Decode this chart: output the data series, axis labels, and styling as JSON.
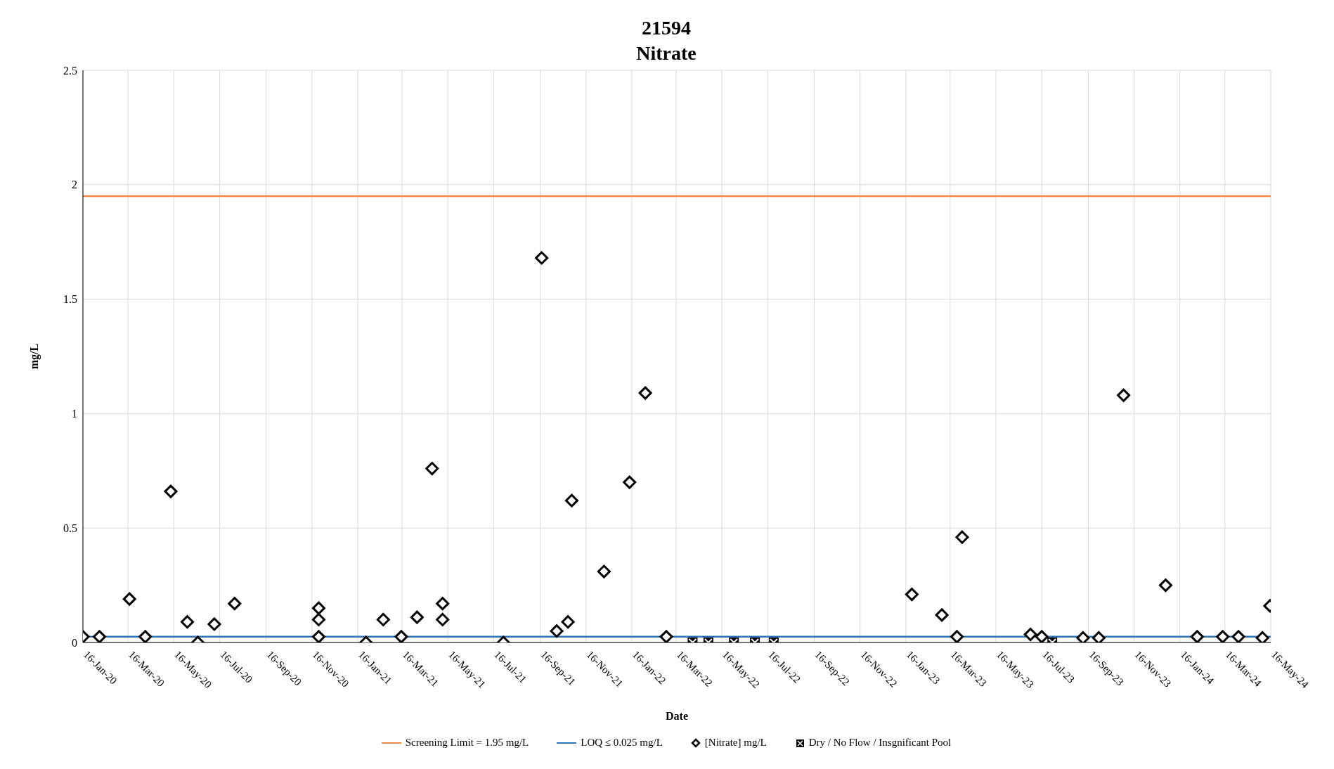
{
  "chart_data": {
    "type": "scatter",
    "title": "21594",
    "subtitle": "Nitrate",
    "xlabel": "Date",
    "ylabel": "mg/L",
    "xlim": [
      "2020-01-16",
      "2024-05-16"
    ],
    "xticks": [
      {
        "value": "2020-01-16",
        "label": "16-Jan-20"
      },
      {
        "value": "2020-03-16",
        "label": "16-Mar-20"
      },
      {
        "value": "2020-05-16",
        "label": "16-May-20"
      },
      {
        "value": "2020-07-16",
        "label": "16-Jul-20"
      },
      {
        "value": "2020-09-16",
        "label": "16-Sep-20"
      },
      {
        "value": "2020-11-16",
        "label": "16-Nov-20"
      },
      {
        "value": "2021-01-16",
        "label": "16-Jan-21"
      },
      {
        "value": "2021-03-16",
        "label": "16-Mar-21"
      },
      {
        "value": "2021-05-16",
        "label": "16-May-21"
      },
      {
        "value": "2021-07-16",
        "label": "16-Jul-21"
      },
      {
        "value": "2021-09-16",
        "label": "16-Sep-21"
      },
      {
        "value": "2021-11-16",
        "label": "16-Nov-21"
      },
      {
        "value": "2022-01-16",
        "label": "16-Jan-22"
      },
      {
        "value": "2022-03-16",
        "label": "16-Mar-22"
      },
      {
        "value": "2022-05-16",
        "label": "16-May-22"
      },
      {
        "value": "2022-07-16",
        "label": "16-Jul-22"
      },
      {
        "value": "2022-09-16",
        "label": "16-Sep-22"
      },
      {
        "value": "2022-11-16",
        "label": "16-Nov-22"
      },
      {
        "value": "2023-01-16",
        "label": "16-Jan-23"
      },
      {
        "value": "2023-03-16",
        "label": "16-Mar-23"
      },
      {
        "value": "2023-05-16",
        "label": "16-May-23"
      },
      {
        "value": "2023-07-16",
        "label": "16-Jul-23"
      },
      {
        "value": "2023-09-16",
        "label": "16-Sep-23"
      },
      {
        "value": "2023-11-16",
        "label": "16-Nov-23"
      },
      {
        "value": "2024-01-16",
        "label": "16-Jan-24"
      },
      {
        "value": "2024-03-16",
        "label": "16-Mar-24"
      },
      {
        "value": "2024-05-16",
        "label": "16-May-24"
      }
    ],
    "ylim": [
      0,
      2.5
    ],
    "yticks": [
      0,
      0.5,
      1,
      1.5,
      2,
      2.5
    ],
    "grid": true,
    "legend": "bottom",
    "ref_lines": [
      {
        "axis": "y",
        "value": 1.95,
        "label": "Screening Limit = 1.95 mg/L",
        "color": "#f08a4b"
      },
      {
        "axis": "y",
        "value": 0.025,
        "label": "LOQ ≤ 0.025 mg/L",
        "color": "#2e75b6"
      }
    ],
    "series": [
      {
        "name": "[Nitrate] mg/L",
        "color": "#000000",
        "marker": "diamond",
        "x": [
          "2020-01-16",
          "2020-02-07",
          "2020-03-18",
          "2020-04-08",
          "2020-05-12",
          "2020-06-03",
          "2020-06-17",
          "2020-07-09",
          "2020-08-05",
          "2020-11-25",
          "2020-11-25",
          "2020-11-25",
          "2021-01-27",
          "2021-02-19",
          "2021-03-15",
          "2021-04-05",
          "2021-04-25",
          "2021-05-09",
          "2021-05-09",
          "2021-07-29",
          "2021-09-18",
          "2021-10-08",
          "2021-10-23",
          "2021-10-28",
          "2021-12-10",
          "2022-01-13",
          "2022-02-03",
          "2022-03-03",
          "2023-01-24",
          "2023-03-05",
          "2023-03-25",
          "2023-04-01",
          "2023-07-01",
          "2023-07-16",
          "2023-09-09",
          "2023-09-30",
          "2023-11-02",
          "2023-12-28",
          "2024-02-08",
          "2024-03-13",
          "2024-04-03",
          "2024-05-05",
          "2024-05-15"
        ],
        "values": [
          0.025,
          0.025,
          0.19,
          0.025,
          0.66,
          0.09,
          0,
          0.08,
          0.17,
          0.15,
          0.1,
          0.025,
          0,
          0.1,
          0.025,
          0.11,
          0.76,
          0.17,
          0.1,
          0,
          1.68,
          0.05,
          0.09,
          0.62,
          0.31,
          0.7,
          1.09,
          0.025,
          0.21,
          0.12,
          0.025,
          0.46,
          0.035,
          0.025,
          0.02,
          0.02,
          1.08,
          0.25,
          0.025,
          0.025,
          0.025,
          0.02,
          0.16
        ]
      },
      {
        "name": "Dry / No Flow / Insgnificant Pool",
        "color": "#000000",
        "marker": "square",
        "x": [
          "2022-04-07",
          "2022-04-28",
          "2022-06-01",
          "2022-06-29",
          "2022-07-24",
          "2023-07-30"
        ],
        "values": [
          0,
          0,
          0,
          0,
          0,
          0
        ]
      }
    ]
  }
}
